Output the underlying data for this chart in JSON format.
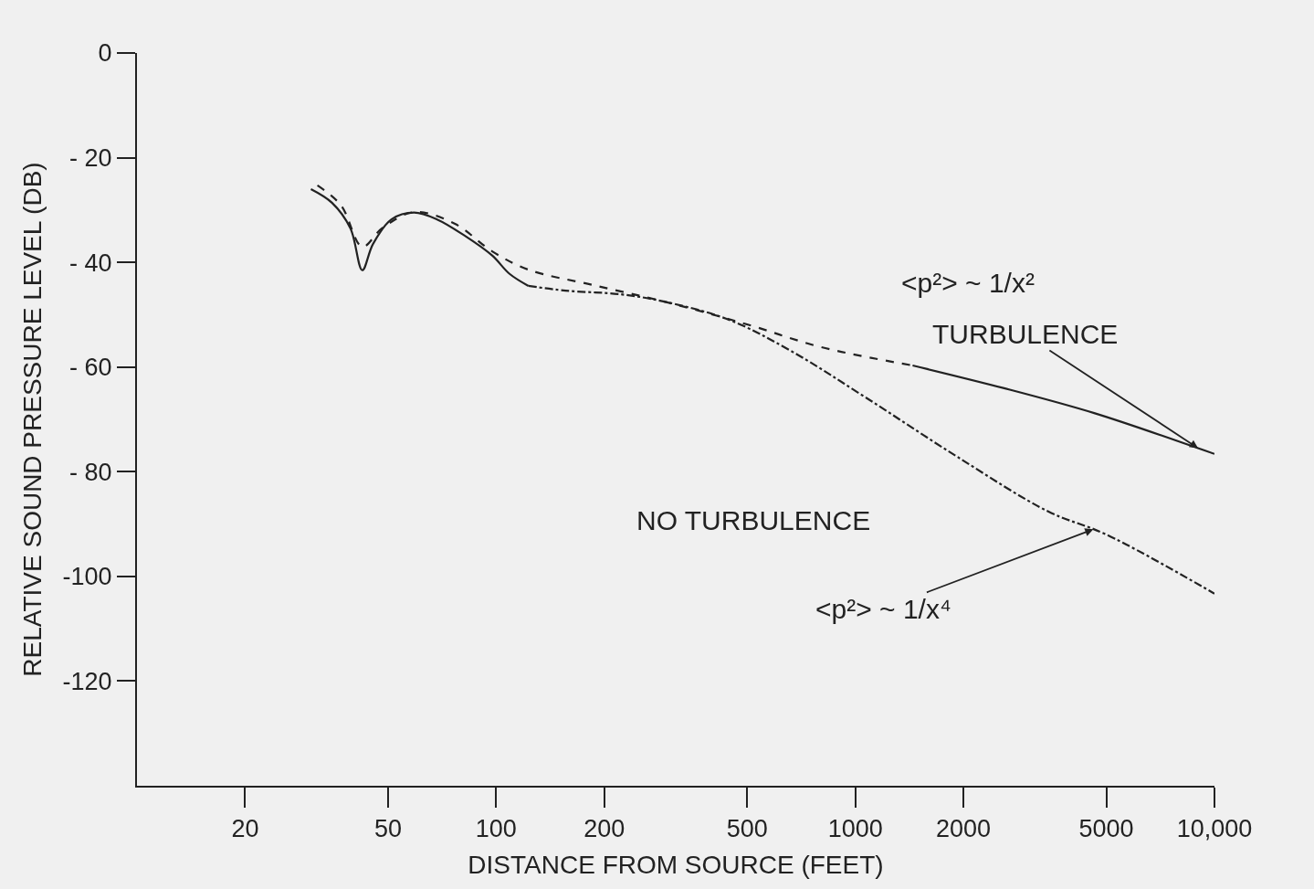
{
  "chart_data": {
    "type": "line",
    "xlabel": "DISTANCE FROM SOURCE (FEET)",
    "ylabel": "RELATIVE SOUND PRESSURE LEVEL (DB)",
    "log": "x",
    "grid": false,
    "xlim": [
      10,
      10000
    ],
    "ylim": [
      -140,
      0
    ],
    "xticks": [
      20,
      50,
      100,
      200,
      500,
      1000,
      2000,
      5000,
      {
        "value": 10000,
        "label": "10,000"
      }
    ],
    "yticks": [
      0,
      {
        "value": -20,
        "label": "- 20"
      },
      {
        "value": -40,
        "label": "- 40"
      },
      {
        "value": -60,
        "label": "- 60"
      },
      {
        "value": -80,
        "label": "- 80"
      },
      -100,
      -120
    ],
    "series": [
      {
        "color": "#222222",
        "line_style": "solid",
        "x": [
          30.5,
          34.9,
          39.3,
          42.4,
          45.4,
          51.1,
          59.1,
          68.5,
          81.7,
          97.5,
          109,
          123
        ],
        "values": [
          -26.0,
          -28.6,
          -33.5,
          -41.5,
          -36.5,
          -31.8,
          -30.5,
          -31.8,
          -34.9,
          -38.7,
          -42.2,
          -44.5
        ]
      },
      {
        "color": "#222222",
        "line_style": "dashed",
        "x": [
          31.8,
          37.0,
          42.4,
          48.1,
          59.1,
          76.6,
          97.5,
          123,
          185,
          294,
          497,
          804,
          1444
        ],
        "values": [
          -25.3,
          -29.1,
          -37.0,
          -33.5,
          -30.4,
          -32.6,
          -37.9,
          -41.4,
          -44.3,
          -47.5,
          -51.8,
          -56.2,
          -59.7
        ]
      },
      {
        "color": "#222222",
        "line_style": "solid",
        "x": [
          1444,
          2582,
          4626,
          9000,
          10000
        ],
        "values": [
          -59.7,
          -64.0,
          -68.8,
          -75.5,
          -76.6
        ]
      },
      {
        "color": "#222222",
        "line_style": "dashdot",
        "x": [
          123,
          156,
          222,
          294,
          446,
          669,
          1068,
          1918,
          3444,
          5000,
          10000
        ],
        "values": [
          -44.5,
          -45.4,
          -46.1,
          -47.5,
          -51.0,
          -57.1,
          -65.8,
          -77.1,
          -87.6,
          -92.0,
          -103.3
        ]
      }
    ],
    "annotations": [
      "<p²> ~ 1/x²",
      {
        "text": "TURBULENCE",
        "x": 9000,
        "y": -75.5
      },
      "NO TURBULENCE",
      {
        "text": "<p²> ~ 1/x⁴",
        "x": 4600,
        "y": -91
      }
    ]
  }
}
